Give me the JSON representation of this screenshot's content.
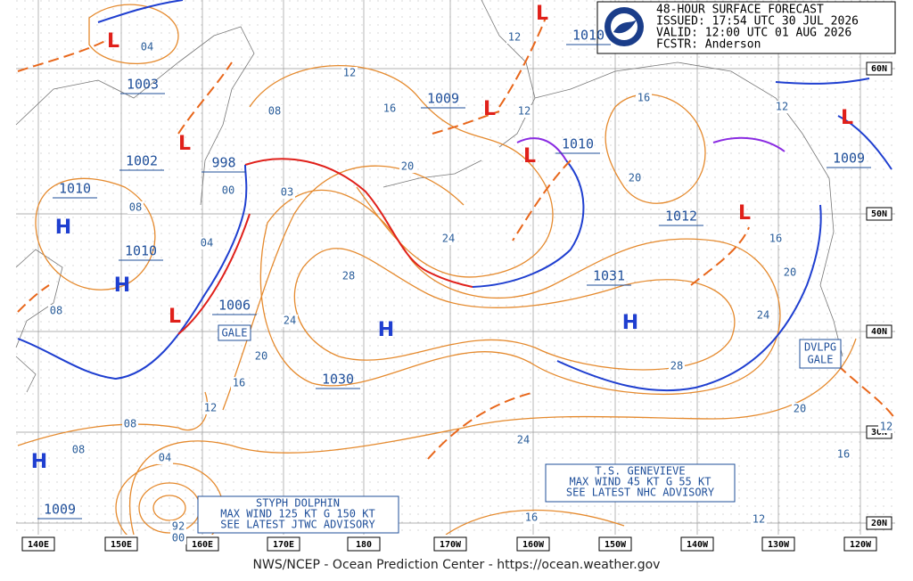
{
  "header": {
    "lines": [
      "48-HOUR SURFACE FORECAST",
      "ISSUED: 17:54 UTC 30 JUL 2026",
      "VALID:  12:00 UTC 01 AUG 2026",
      "FCSTR:  Anderson"
    ]
  },
  "footer": "NWS/NCEP - Ocean Prediction Center - https://ocean.weather.gov",
  "longitudes": [
    "140E",
    "150E",
    "160E",
    "170E",
    "180",
    "170W",
    "160W",
    "150W",
    "140W",
    "130W",
    "120W"
  ],
  "latitudes": [
    "60N",
    "50N",
    "40N",
    "30N",
    "20N"
  ],
  "highs": [
    "H",
    "H",
    "H",
    "H",
    "H"
  ],
  "lows": [
    "L",
    "L",
    "L",
    "L",
    "L",
    "L",
    "L",
    "L"
  ],
  "center_pressures": [
    "1003",
    "1009",
    "1010",
    "1010",
    "1002",
    "998",
    "1010",
    "1012",
    "1010",
    "1009",
    "1006",
    "1031",
    "1030",
    "1009"
  ],
  "isobar_labels": [
    "04",
    "12",
    "08",
    "16",
    "12",
    "12",
    "16",
    "12",
    "20",
    "20",
    "00",
    "03",
    "08",
    "04",
    "24",
    "16",
    "28",
    "20",
    "08",
    "24",
    "24",
    "20",
    "16",
    "28",
    "12",
    "08",
    "20",
    "24",
    "08",
    "16",
    "04",
    "92",
    "00",
    "16",
    "12",
    "12"
  ],
  "warnings": {
    "gale": "GALE",
    "developing_gale": [
      "DVLPG",
      "GALE"
    ]
  },
  "storms": [
    {
      "lines": [
        "STYPH DOLPHIN",
        "MAX WIND 125 KT G 150 KT",
        "SEE LATEST JTWC ADVISORY"
      ]
    },
    {
      "lines": [
        "T.S. GENEVIEVE",
        "MAX WIND 45 KT G 55 KT",
        "SEE LATEST NHC ADVISORY"
      ]
    }
  ]
}
